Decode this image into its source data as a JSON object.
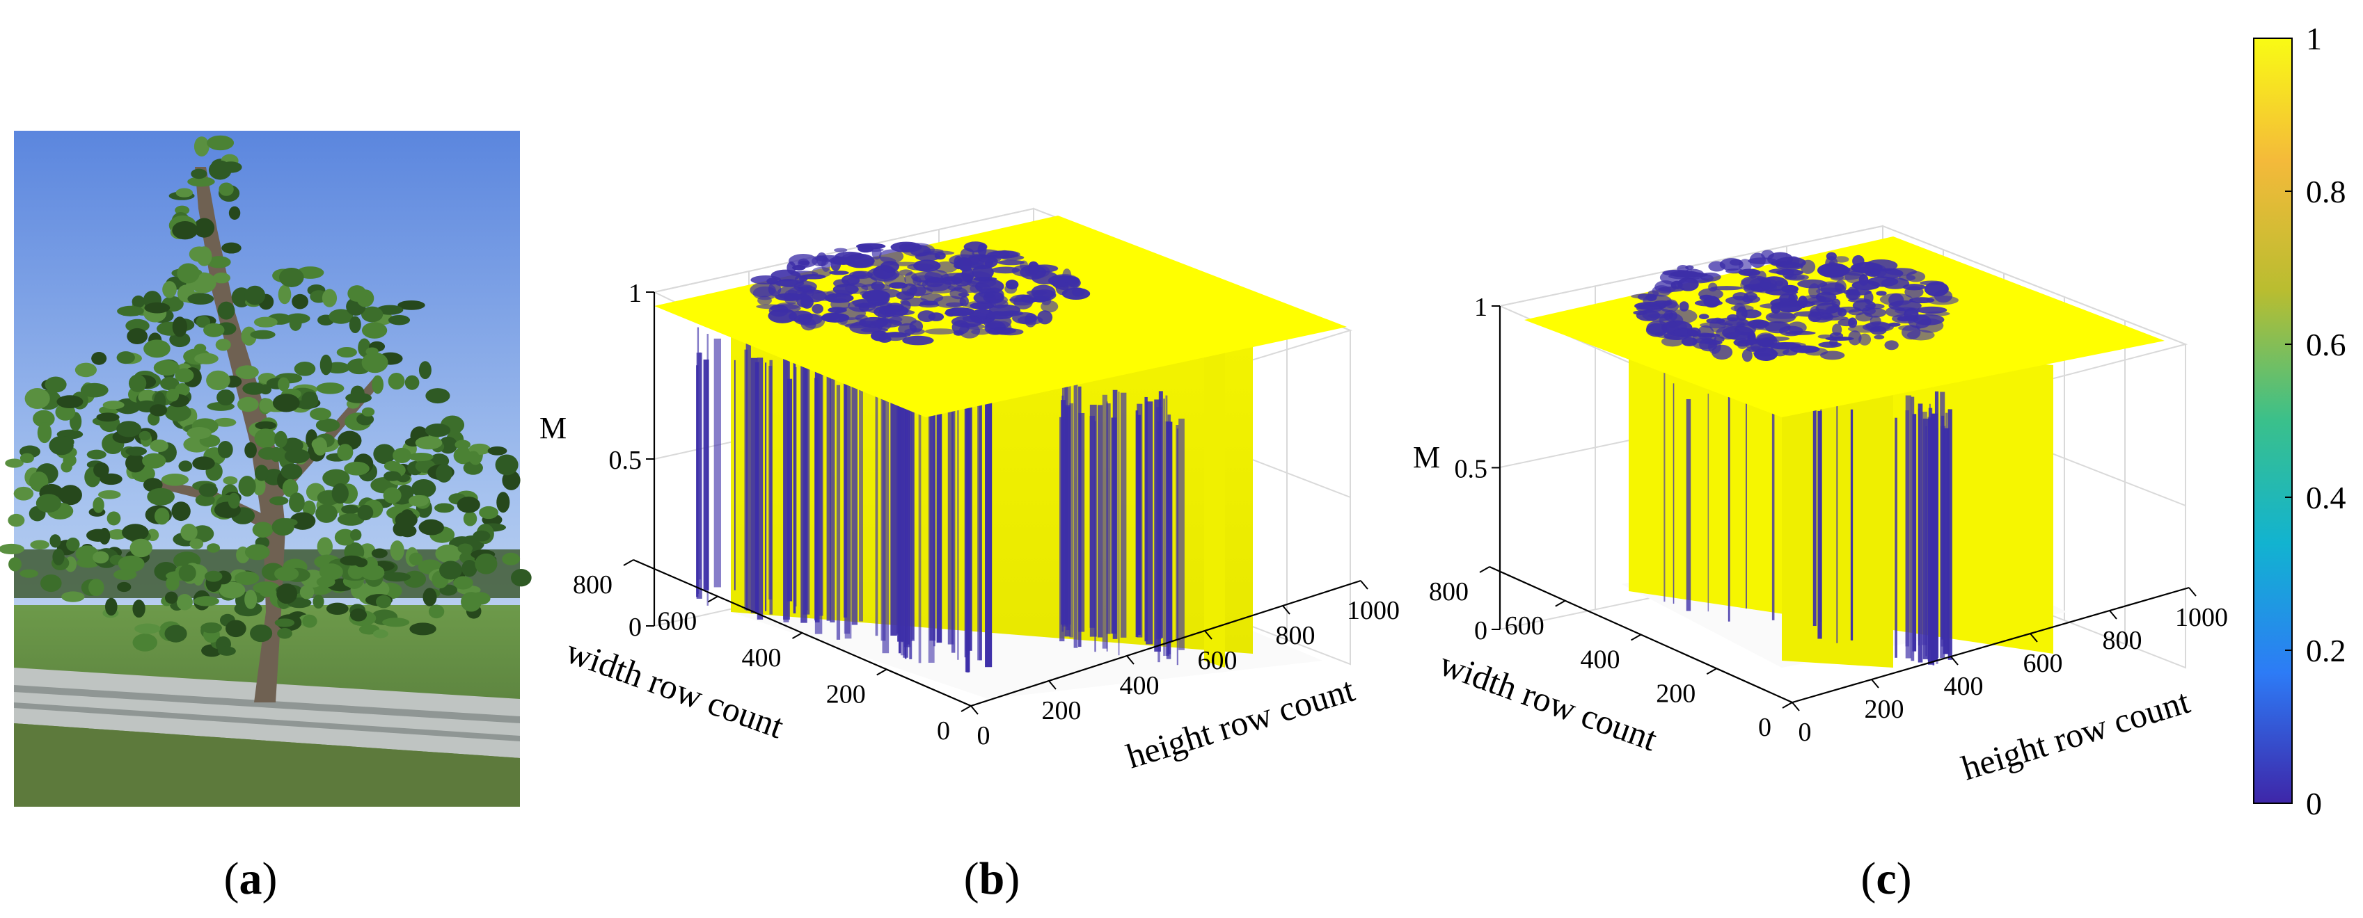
{
  "panels": {
    "a": {
      "caption": "(a)",
      "caption_letter": "a"
    },
    "b": {
      "caption": "(b)",
      "caption_letter": "b"
    },
    "c": {
      "caption": "(c)",
      "caption_letter": "c"
    }
  },
  "colors": {
    "surface_high": "#ffff00",
    "surface_low": "#3d2fa8",
    "axis": "#000000",
    "grid": "#d9d9d9"
  },
  "chart_data": [
    {
      "panel": "b",
      "type": "surface",
      "zlabel": "M",
      "xlabel": "height row count",
      "ylabel": "width row count",
      "xticks": [
        "0",
        "200",
        "400",
        "600",
        "800",
        "1000"
      ],
      "yticks": [
        "0",
        "200",
        "400",
        "600",
        "800"
      ],
      "zticks": [
        "0",
        "0.5",
        "1"
      ],
      "xlim": [
        0,
        1000
      ],
      "ylim": [
        0,
        800
      ],
      "zlim": [
        0,
        1
      ],
      "colormap": "parula"
    },
    {
      "panel": "c",
      "type": "surface",
      "zlabel": "M",
      "xlabel": "height row count",
      "ylabel": "width row count",
      "xticks": [
        "0",
        "200",
        "400",
        "600",
        "800",
        "1000"
      ],
      "yticks": [
        "0",
        "200",
        "400",
        "600",
        "800"
      ],
      "zticks": [
        "0",
        "0.5",
        "1"
      ],
      "xlim": [
        0,
        1000
      ],
      "ylim": [
        0,
        800
      ],
      "zlim": [
        0,
        1
      ],
      "colormap": "parula"
    }
  ],
  "colorbar": {
    "ticks": [
      "0",
      "0.2",
      "0.4",
      "0.6",
      "0.8",
      "1"
    ],
    "range": [
      0,
      1
    ],
    "colors": [
      "#3e26a8",
      "#2d7bf6",
      "#12b3d0",
      "#3ac08b",
      "#b9bd30",
      "#f4ba3a",
      "#f9fb14"
    ]
  }
}
